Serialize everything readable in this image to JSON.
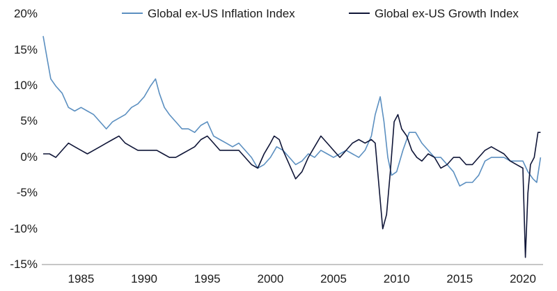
{
  "chart_data": {
    "type": "line",
    "title": "",
    "xlabel": "",
    "ylabel": "",
    "xlim": [
      1982,
      2021.6
    ],
    "ylim": [
      -15,
      20
    ],
    "x_ticks": [
      1985,
      1990,
      1995,
      2000,
      2005,
      2010,
      2015,
      2020
    ],
    "y_ticks": [
      20,
      15,
      10,
      5,
      0,
      -5,
      -10,
      -15
    ],
    "y_tick_labels": [
      "20%",
      "15%",
      "10%",
      "5%",
      "0%",
      "-5%",
      "-10%",
      "-15%"
    ],
    "grid": false,
    "legend_position": "top",
    "series": [
      {
        "name": "Global ex-US Inflation Index",
        "color": "#5b8fc0",
        "x": [
          1982.0,
          1982.3,
          1982.6,
          1983.0,
          1983.5,
          1984.0,
          1984.5,
          1985.0,
          1985.5,
          1986.0,
          1986.5,
          1987.0,
          1987.5,
          1988.0,
          1988.5,
          1989.0,
          1989.5,
          1990.0,
          1990.5,
          1990.9,
          1991.2,
          1991.6,
          1992.0,
          1992.5,
          1993.0,
          1993.5,
          1994.0,
          1994.5,
          1995.0,
          1995.5,
          1996.0,
          1996.5,
          1997.0,
          1997.5,
          1998.0,
          1998.5,
          1999.0,
          1999.5,
          2000.0,
          2000.5,
          2001.0,
          2001.5,
          2002.0,
          2002.5,
          2003.0,
          2003.5,
          2004.0,
          2004.5,
          2005.0,
          2005.5,
          2006.0,
          2006.5,
          2007.0,
          2007.5,
          2008.0,
          2008.3,
          2008.7,
          2009.0,
          2009.3,
          2009.6,
          2010.0,
          2010.5,
          2011.0,
          2011.5,
          2012.0,
          2012.5,
          2013.0,
          2013.5,
          2014.0,
          2014.5,
          2015.0,
          2015.5,
          2016.0,
          2016.5,
          2017.0,
          2017.5,
          2018.0,
          2018.5,
          2019.0,
          2019.5,
          2020.0,
          2020.4,
          2020.8,
          2021.1,
          2021.4
        ],
        "y": [
          17,
          14,
          11,
          10,
          9,
          7,
          6.5,
          7,
          6.5,
          6,
          5,
          4,
          5,
          5.5,
          6,
          7,
          7.5,
          8.5,
          10,
          11,
          9,
          7,
          6,
          5,
          4,
          4,
          3.5,
          4.5,
          5,
          3,
          2.5,
          2,
          1.5,
          2,
          1,
          0,
          -1.5,
          -1,
          0,
          1.5,
          1,
          0,
          -1,
          -0.5,
          0.5,
          0,
          1,
          0.5,
          0,
          0.5,
          1,
          0.5,
          0,
          1,
          3,
          6,
          8.5,
          5,
          0,
          -2.5,
          -2,
          1,
          3.5,
          3.5,
          2,
          1,
          0,
          0,
          -1,
          -2,
          -4,
          -3.5,
          -3.5,
          -2.5,
          -0.5,
          0,
          0,
          0,
          -0.5,
          -0.5,
          -0.5,
          -2,
          -3,
          -3.5,
          0
        ]
      },
      {
        "name": "Global ex-US Growth Index",
        "color": "#0f1537",
        "x": [
          1982.0,
          1982.5,
          1983.0,
          1983.5,
          1984.0,
          1984.5,
          1985.0,
          1985.5,
          1986.0,
          1986.5,
          1987.0,
          1987.5,
          1988.0,
          1988.5,
          1989.0,
          1989.5,
          1990.0,
          1990.5,
          1991.0,
          1991.5,
          1992.0,
          1992.5,
          1993.0,
          1993.5,
          1994.0,
          1994.5,
          1995.0,
          1995.5,
          1996.0,
          1996.5,
          1997.0,
          1997.5,
          1998.0,
          1998.5,
          1999.0,
          1999.5,
          2000.0,
          2000.3,
          2000.7,
          2001.0,
          2001.5,
          2002.0,
          2002.5,
          2003.0,
          2003.5,
          2004.0,
          2004.5,
          2005.0,
          2005.5,
          2006.0,
          2006.5,
          2007.0,
          2007.5,
          2008.0,
          2008.3,
          2008.6,
          2008.9,
          2009.2,
          2009.5,
          2009.8,
          2010.1,
          2010.4,
          2010.8,
          2011.2,
          2011.6,
          2012.0,
          2012.5,
          2013.0,
          2013.5,
          2014.0,
          2014.5,
          2015.0,
          2015.5,
          2016.0,
          2016.5,
          2017.0,
          2017.5,
          2018.0,
          2018.5,
          2019.0,
          2019.5,
          2020.0,
          2020.2,
          2020.4,
          2020.6,
          2020.9,
          2021.2,
          2021.4
        ],
        "y": [
          0.5,
          0.5,
          0,
          1,
          2,
          1.5,
          1,
          0.5,
          1,
          1.5,
          2,
          2.5,
          3,
          2,
          1.5,
          1,
          1,
          1,
          1,
          0.5,
          0,
          0,
          0.5,
          1,
          1.5,
          2.5,
          3,
          2,
          1,
          1,
          1,
          1,
          0,
          -1,
          -1.5,
          0.5,
          2,
          3,
          2.5,
          1,
          -1,
          -3,
          -2,
          0,
          1.5,
          3,
          2,
          1,
          0,
          1,
          2,
          2.5,
          2,
          2.5,
          2,
          -4,
          -10,
          -8,
          -2,
          5,
          6,
          4,
          3,
          1,
          0,
          -0.5,
          0.5,
          0,
          -1.5,
          -1,
          0,
          0,
          -1,
          -1,
          0,
          1,
          1.5,
          1,
          0.5,
          -0.5,
          -1,
          -1.5,
          -14,
          -5,
          -1,
          0,
          3.5,
          3.5
        ]
      }
    ]
  }
}
